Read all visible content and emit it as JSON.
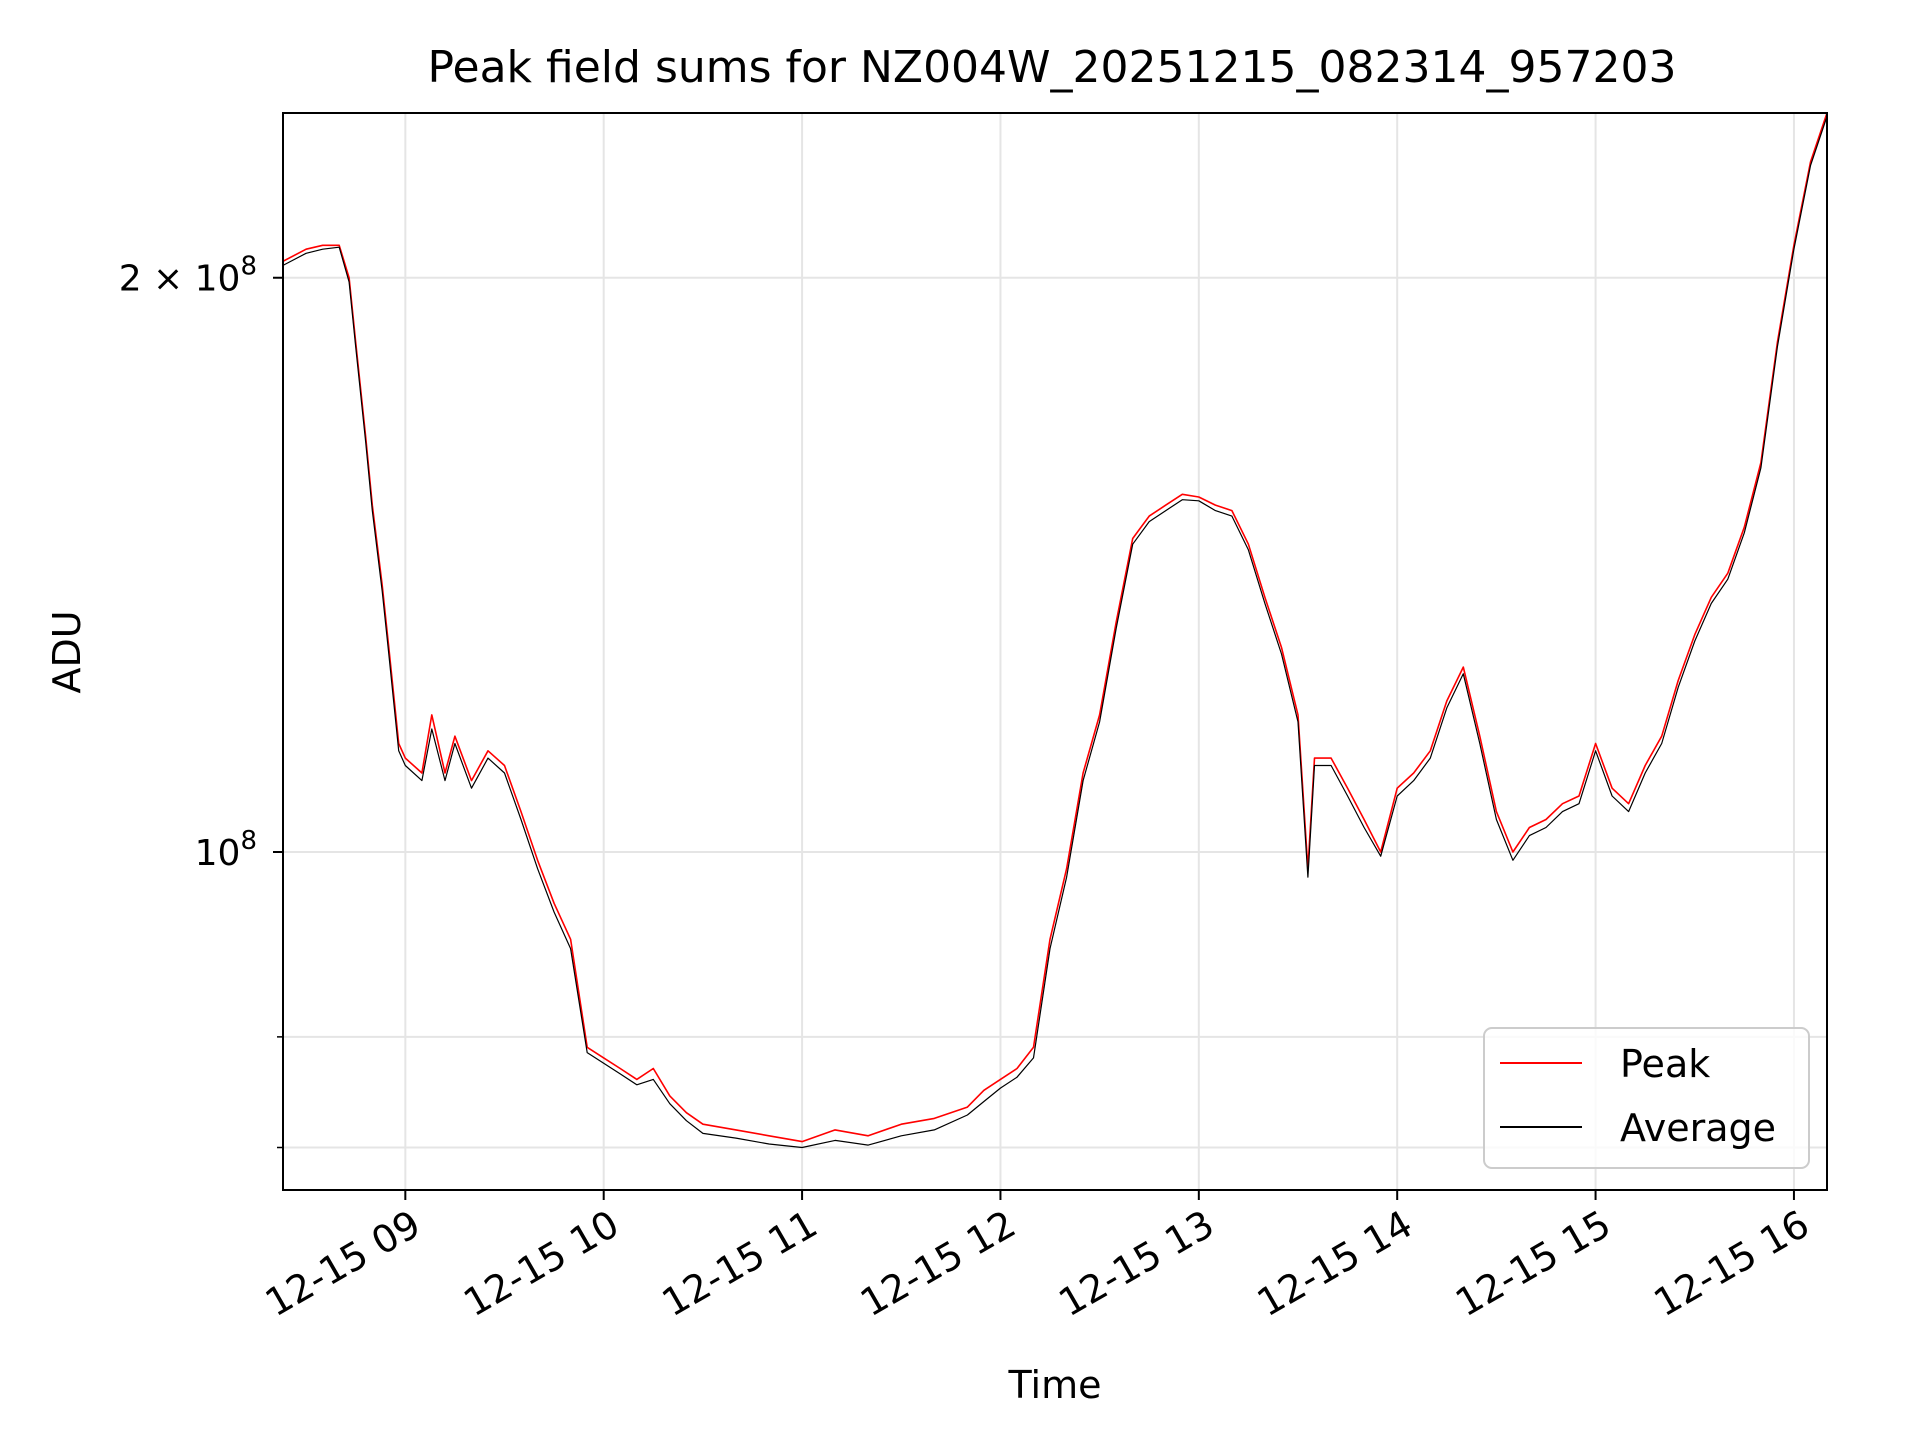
{
  "chart_data": {
    "type": "line",
    "title": "Peak field sums for NZ004W_20251215_082314_957203",
    "xlabel": "Time",
    "ylabel": "ADU",
    "y_scale": "log",
    "ylim": [
      66500000,
      244000000
    ],
    "xlim": [
      "2025-12-15 08:23",
      "2025-12-15 16:10"
    ],
    "grid": true,
    "legend_position": "lower right",
    "colors": {
      "Peak": "#ff0000",
      "Average": "#000000"
    },
    "x_ticks": [
      {
        "label": "12-15 09",
        "value": "2025-12-15 09:00"
      },
      {
        "label": "12-15 10",
        "value": "2025-12-15 10:00"
      },
      {
        "label": "12-15 11",
        "value": "2025-12-15 11:00"
      },
      {
        "label": "12-15 12",
        "value": "2025-12-15 12:00"
      },
      {
        "label": "12-15 13",
        "value": "2025-12-15 13:00"
      },
      {
        "label": "12-15 14",
        "value": "2025-12-15 14:00"
      },
      {
        "label": "12-15 15",
        "value": "2025-12-15 15:00"
      },
      {
        "label": "12-15 16",
        "value": "2025-12-15 16:00"
      }
    ],
    "y_ticks_major": [
      {
        "label_base": "10",
        "label_sup": "8",
        "value": 100000000
      },
      {
        "label_base": "2 × 10",
        "label_sup": "8",
        "value": 200000000
      }
    ],
    "y_ticks_minor": [
      70000000,
      80000000
    ],
    "x": [
      "2025-12-15 08:23",
      "2025-12-15 08:30",
      "2025-12-15 08:35",
      "2025-12-15 08:40",
      "2025-12-15 08:43",
      "2025-12-15 08:45",
      "2025-12-15 08:48",
      "2025-12-15 08:50",
      "2025-12-15 08:53",
      "2025-12-15 08:55",
      "2025-12-15 08:58",
      "2025-12-15 09:00",
      "2025-12-15 09:05",
      "2025-12-15 09:08",
      "2025-12-15 09:12",
      "2025-12-15 09:15",
      "2025-12-15 09:20",
      "2025-12-15 09:25",
      "2025-12-15 09:30",
      "2025-12-15 09:35",
      "2025-12-15 09:40",
      "2025-12-15 09:45",
      "2025-12-15 09:50",
      "2025-12-15 09:55",
      "2025-12-15 10:00",
      "2025-12-15 10:05",
      "2025-12-15 10:10",
      "2025-12-15 10:15",
      "2025-12-15 10:20",
      "2025-12-15 10:25",
      "2025-12-15 10:30",
      "2025-12-15 10:40",
      "2025-12-15 10:50",
      "2025-12-15 11:00",
      "2025-12-15 11:10",
      "2025-12-15 11:20",
      "2025-12-15 11:30",
      "2025-12-15 11:40",
      "2025-12-15 11:50",
      "2025-12-15 11:55",
      "2025-12-15 12:00",
      "2025-12-15 12:05",
      "2025-12-15 12:10",
      "2025-12-15 12:15",
      "2025-12-15 12:20",
      "2025-12-15 12:25",
      "2025-12-15 12:30",
      "2025-12-15 12:35",
      "2025-12-15 12:40",
      "2025-12-15 12:45",
      "2025-12-15 12:50",
      "2025-12-15 12:55",
      "2025-12-15 13:00",
      "2025-12-15 13:05",
      "2025-12-15 13:10",
      "2025-12-15 13:15",
      "2025-12-15 13:20",
      "2025-12-15 13:25",
      "2025-12-15 13:30",
      "2025-12-15 13:33",
      "2025-12-15 13:35",
      "2025-12-15 13:40",
      "2025-12-15 13:45",
      "2025-12-15 13:50",
      "2025-12-15 13:55",
      "2025-12-15 14:00",
      "2025-12-15 14:05",
      "2025-12-15 14:10",
      "2025-12-15 14:15",
      "2025-12-15 14:20",
      "2025-12-15 14:25",
      "2025-12-15 14:30",
      "2025-12-15 14:35",
      "2025-12-15 14:40",
      "2025-12-15 14:45",
      "2025-12-15 14:50",
      "2025-12-15 14:55",
      "2025-12-15 15:00",
      "2025-12-15 15:05",
      "2025-12-15 15:10",
      "2025-12-15 15:15",
      "2025-12-15 15:20",
      "2025-12-15 15:25",
      "2025-12-15 15:30",
      "2025-12-15 15:35",
      "2025-12-15 15:40",
      "2025-12-15 15:45",
      "2025-12-15 15:50",
      "2025-12-15 15:55",
      "2025-12-15 16:00",
      "2025-12-15 16:05",
      "2025-12-15 16:10"
    ],
    "series": [
      {
        "name": "Peak",
        "values": [
          204000000,
          207000000,
          208000000,
          208000000,
          200000000,
          185000000,
          165000000,
          152000000,
          138000000,
          128000000,
          114000000,
          112000000,
          110000000,
          118000000,
          110000000,
          115000000,
          109000000,
          113000000,
          111000000,
          105000000,
          99000000,
          94000000,
          90000000,
          79000000,
          78000000,
          77000000,
          76000000,
          77000000,
          74500000,
          73000000,
          72000000,
          71500000,
          71000000,
          70500000,
          71500000,
          71000000,
          72000000,
          72500000,
          73500000,
          75000000,
          76000000,
          77000000,
          79000000,
          90000000,
          98000000,
          110000000,
          118000000,
          132000000,
          146000000,
          150000000,
          152000000,
          154000000,
          153500000,
          152000000,
          151000000,
          145000000,
          136000000,
          128000000,
          118000000,
          98000000,
          112000000,
          112000000,
          108000000,
          104000000,
          100000000,
          108000000,
          110000000,
          113000000,
          120000000,
          125000000,
          115000000,
          105000000,
          100000000,
          103000000,
          104000000,
          106000000,
          107000000,
          114000000,
          108000000,
          106000000,
          111000000,
          115000000,
          123000000,
          130000000,
          136000000,
          140000000,
          148000000,
          160000000,
          185000000,
          208000000,
          230000000,
          244000000
        ]
      },
      {
        "name": "Average",
        "values": [
          203000000,
          206000000,
          207000000,
          207500000,
          199000000,
          184000000,
          164000000,
          151000000,
          137000000,
          127000000,
          113000000,
          111000000,
          109000000,
          116000000,
          109000000,
          114000000,
          108000000,
          112000000,
          110000000,
          104000000,
          98000000,
          93000000,
          89000000,
          78500000,
          77500000,
          76500000,
          75500000,
          76000000,
          73800000,
          72300000,
          71200000,
          70800000,
          70300000,
          70000000,
          70600000,
          70200000,
          71000000,
          71500000,
          72800000,
          74000000,
          75200000,
          76200000,
          78000000,
          89000000,
          97000000,
          109000000,
          117000000,
          131000000,
          145000000,
          149000000,
          151000000,
          153000000,
          152800000,
          151000000,
          150000000,
          144000000,
          135000000,
          127000000,
          117000000,
          97000000,
          111000000,
          111000000,
          107000000,
          103000000,
          99500000,
          107000000,
          109000000,
          112000000,
          119000000,
          124000000,
          114000000,
          104000000,
          99000000,
          102000000,
          103000000,
          105000000,
          106000000,
          113000000,
          107000000,
          105000000,
          110000000,
          114000000,
          122000000,
          129000000,
          135000000,
          139000000,
          147000000,
          159000000,
          184000000,
          207000000,
          229000000,
          243000000
        ]
      }
    ]
  }
}
